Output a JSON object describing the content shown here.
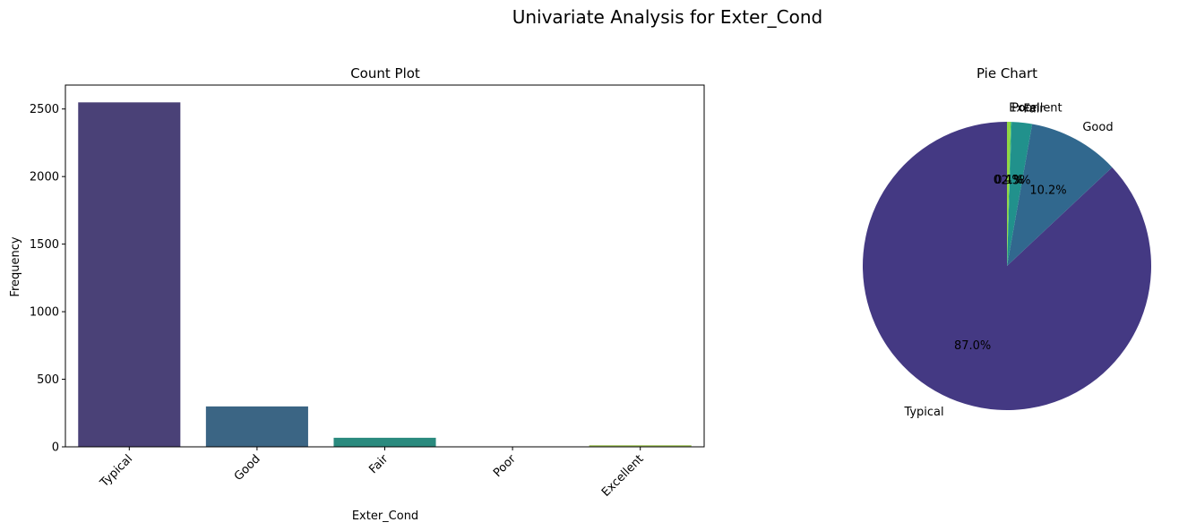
{
  "figure": {
    "title": "Univariate Analysis for Exter_Cond"
  },
  "chart_data": [
    {
      "type": "bar",
      "title": "Count Plot",
      "xlabel": "Exter_Cond",
      "ylabel": "Frequency",
      "categories": [
        "Typical",
        "Good",
        "Fair",
        "Poor",
        "Excellent"
      ],
      "values": [
        2549,
        299,
        67,
        3,
        12
      ],
      "colors": [
        "#4a4177",
        "#3b6584",
        "#2a8a7e",
        "#4ca168",
        "#a3c55d"
      ],
      "ylim": [
        0,
        2677
      ],
      "yticks": [
        0,
        500,
        1000,
        1500,
        2000,
        2500
      ],
      "grid": false
    },
    {
      "type": "pie",
      "title": "Pie Chart",
      "labels": [
        "Typical",
        "Good",
        "Fair",
        "Poor",
        "Excellent"
      ],
      "values": [
        2549,
        299,
        67,
        3,
        12
      ],
      "percent_labels": [
        "87.0%",
        "10.2%",
        "2.3%",
        "0.1%",
        "0.4%"
      ],
      "colors": [
        "#443983",
        "#31688e",
        "#21918c",
        "#35b779",
        "#90d743"
      ],
      "start_angle_deg": 90
    }
  ]
}
